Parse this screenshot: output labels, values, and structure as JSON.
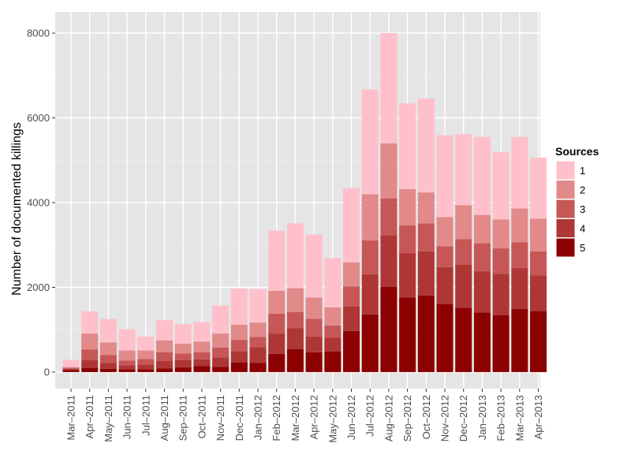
{
  "chart_data": {
    "type": "bar",
    "stacked": true,
    "ylabel": "Number of documented killings",
    "xlabel": "",
    "ylim": [
      0,
      8000
    ],
    "yticks": [
      0,
      2000,
      4000,
      6000,
      8000
    ],
    "y_tick_labels": [
      "0",
      "2000",
      "4000",
      "6000",
      "8000"
    ],
    "grid": true,
    "legend_position": "right",
    "background_color": "#e5e5e5",
    "categories": [
      "Mar–2011",
      "Apr–2011",
      "May–2011",
      "Jun–2011",
      "Jul–2011",
      "Aug–2011",
      "Sep–2011",
      "Oct–2011",
      "Nov–2011",
      "Dec–2011",
      "Jan–2012",
      "Feb–2012",
      "Mar–2012",
      "Apr–2012",
      "May–2012",
      "Jun–2012",
      "Jul–2012",
      "Aug–2012",
      "Sep–2012",
      "Oct–2012",
      "Nov–2012",
      "Dec–2012",
      "Jan–2013",
      "Feb–2013",
      "Mar–2013",
      "Apr–2013"
    ],
    "legend_title": "Sources",
    "series": [
      {
        "name": "5",
        "color": "#8b0000",
        "values": [
          50,
          100,
          80,
          70,
          70,
          90,
          110,
          140,
          120,
          230,
          220,
          430,
          540,
          470,
          490,
          970,
          1360,
          2010,
          1760,
          1810,
          1600,
          1520,
          1410,
          1340,
          1490,
          1440
        ]
      },
      {
        "name": "4",
        "color": "#ae3634",
        "values": [
          30,
          180,
          140,
          90,
          110,
          170,
          170,
          160,
          230,
          260,
          370,
          480,
          500,
          370,
          320,
          580,
          950,
          1220,
          1040,
          1040,
          880,
          1010,
          970,
          980,
          970,
          840
        ]
      },
      {
        "name": "3",
        "color": "#c65756",
        "values": [
          20,
          250,
          180,
          110,
          130,
          210,
          160,
          170,
          230,
          270,
          240,
          470,
          380,
          420,
          290,
          470,
          800,
          870,
          660,
          660,
          490,
          610,
          660,
          600,
          600,
          570
        ]
      },
      {
        "name": "2",
        "color": "#e2898a",
        "values": [
          20,
          380,
          300,
          240,
          200,
          280,
          230,
          250,
          330,
          360,
          340,
          540,
          560,
          500,
          430,
          570,
          1090,
          1300,
          860,
          730,
          690,
          800,
          670,
          680,
          800,
          770
        ]
      },
      {
        "name": "1",
        "color": "#ffc0cb",
        "values": [
          170,
          520,
          550,
          500,
          330,
          480,
          460,
          460,
          660,
          850,
          790,
          1420,
          1530,
          1490,
          1160,
          1750,
          2470,
          2600,
          2020,
          2220,
          1930,
          1680,
          1840,
          1590,
          1690,
          1440
        ]
      }
    ],
    "legend_order": [
      "1",
      "2",
      "3",
      "4",
      "5"
    ],
    "grid_color": "#ffffff",
    "axis_text_color": "#4d4d4d"
  }
}
